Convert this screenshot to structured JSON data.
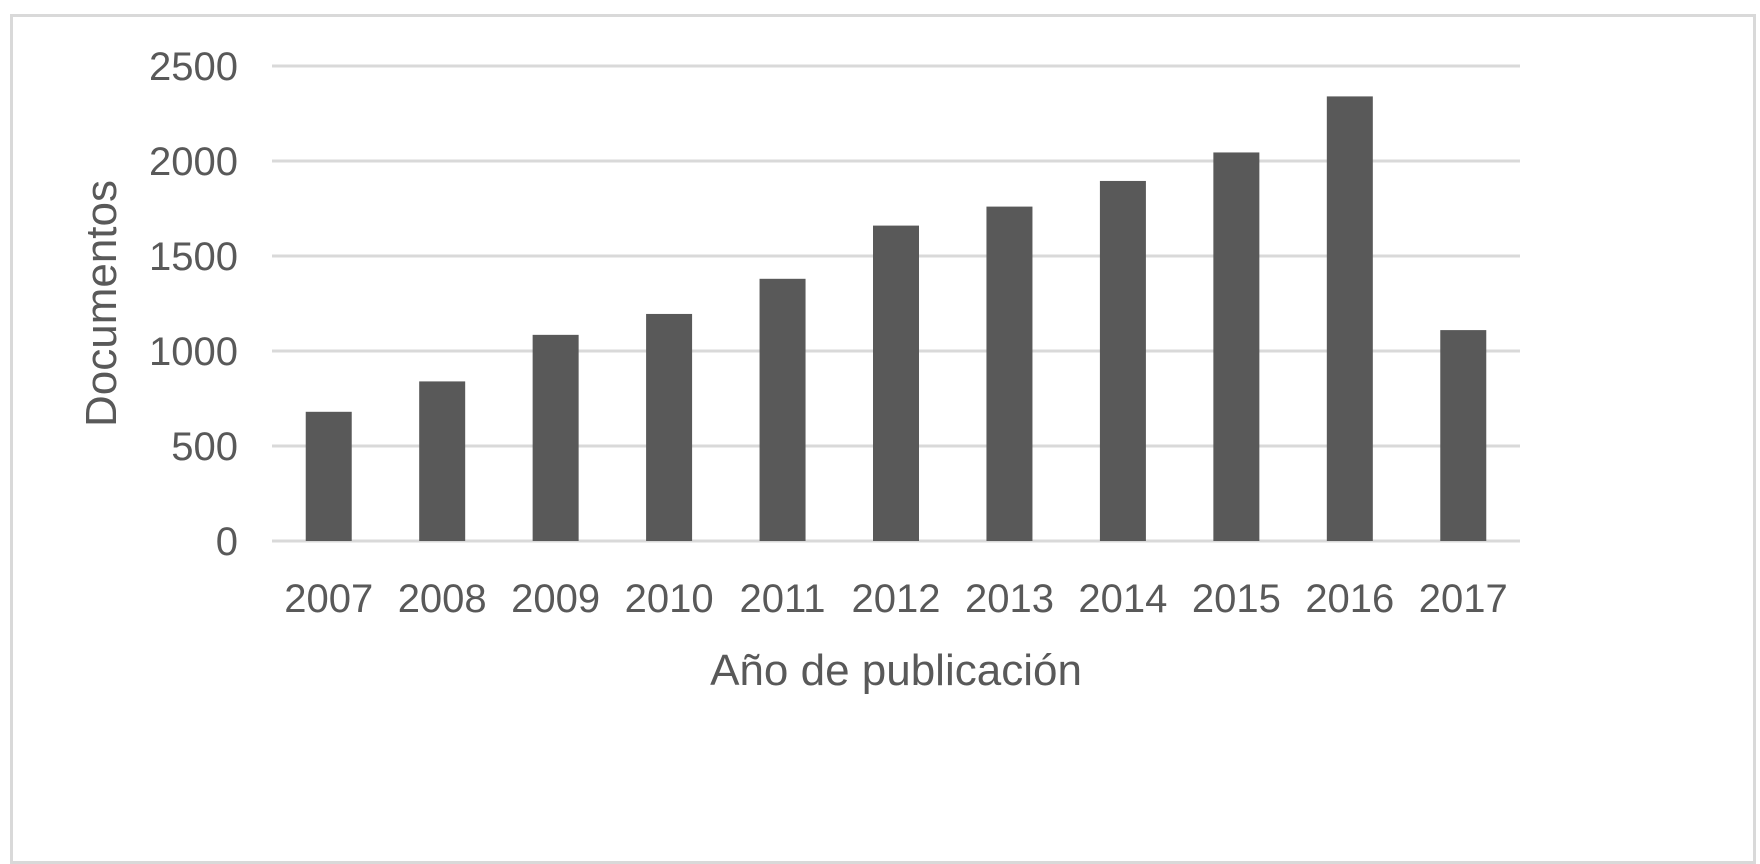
{
  "chart_data": {
    "type": "bar",
    "title": "",
    "xlabel": "Año de publicación",
    "ylabel": "Documentos",
    "categories": [
      "2007",
      "2008",
      "2009",
      "2010",
      "2011",
      "2012",
      "2013",
      "2014",
      "2015",
      "2016",
      "2017"
    ],
    "series": [
      {
        "values": [
          680,
          840,
          1085,
          1195,
          1380,
          1660,
          1760,
          1895,
          2045,
          2340,
          1110
        ]
      }
    ],
    "ylim": [
      0,
      2500
    ],
    "yticks": [
      0,
      500,
      1000,
      1500,
      2000,
      2500
    ],
    "grid": true,
    "legend": "none",
    "colors": {
      "bar": "#595959",
      "grid": "#d9d9d9",
      "text": "#595959",
      "border": "#d9d9d9"
    }
  }
}
